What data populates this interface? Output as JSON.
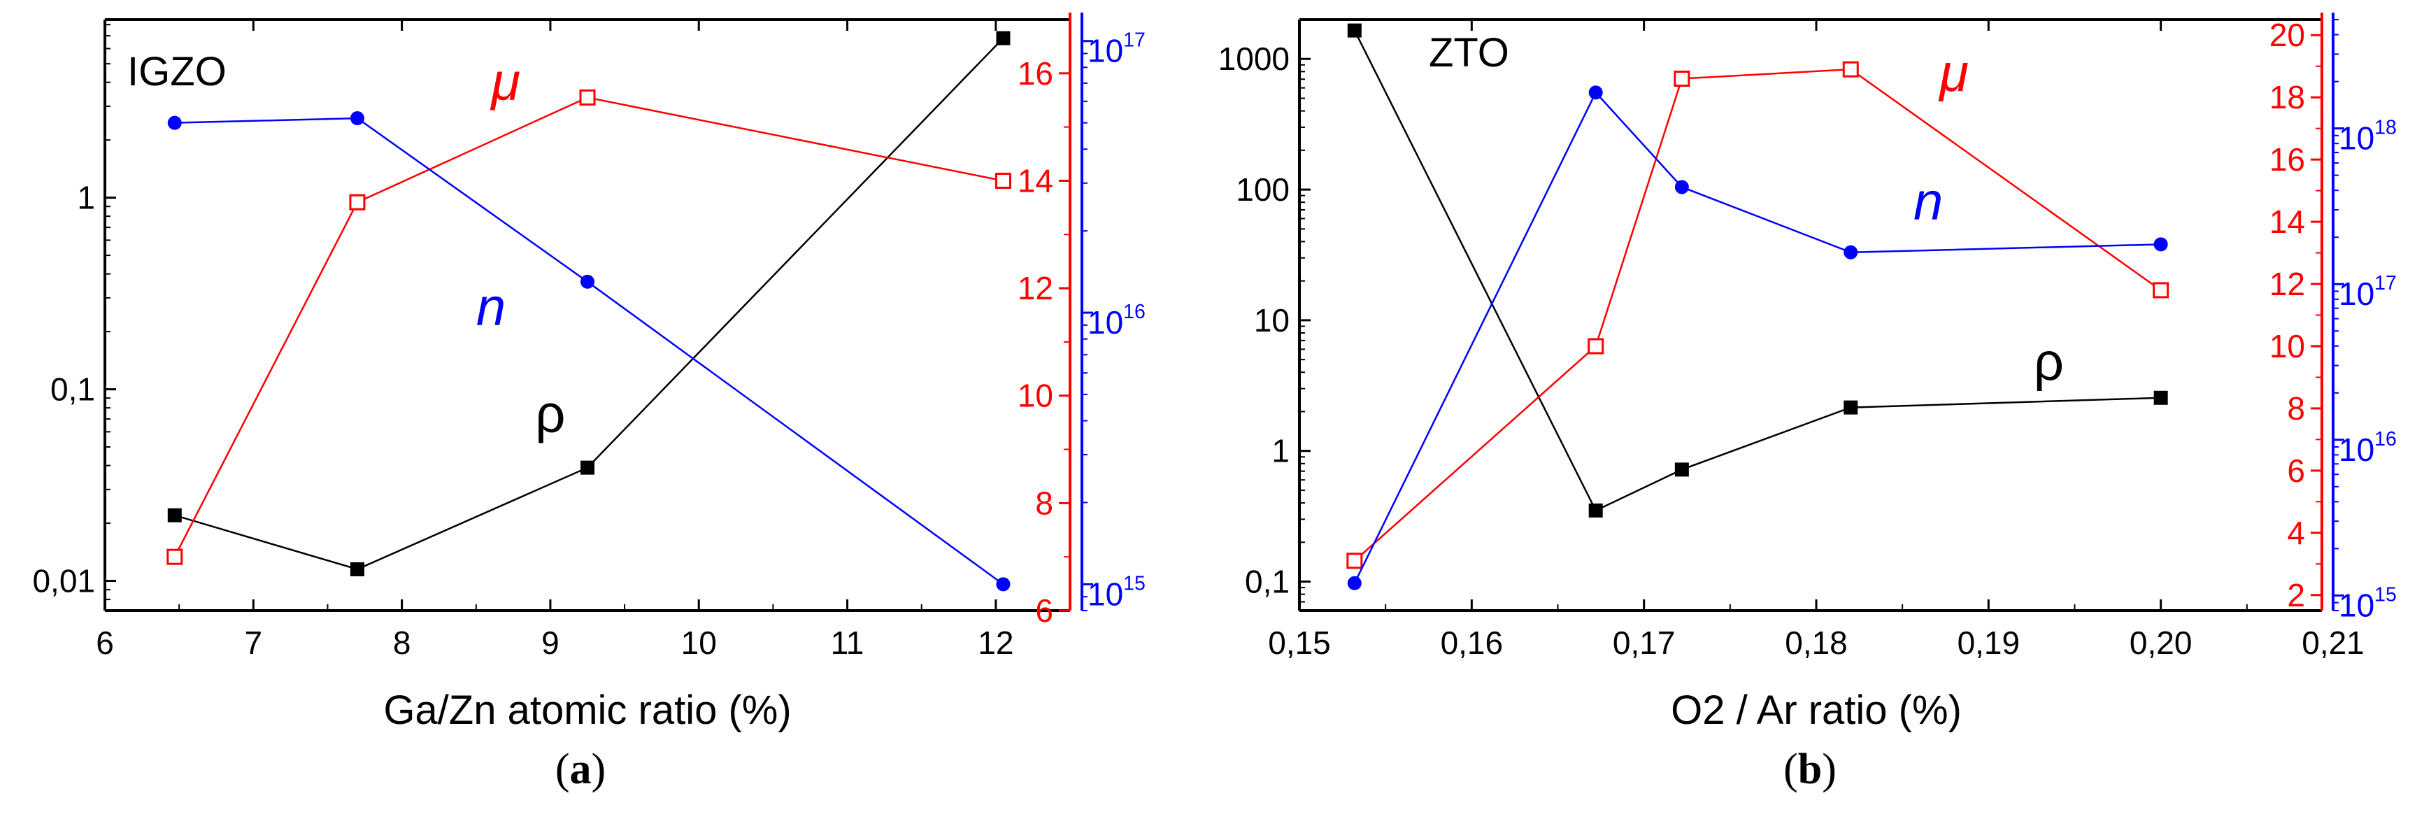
{
  "chart_data": [
    {
      "type": "line",
      "panel_label": "a",
      "title": "IGZO",
      "xlabel": "Ga/Zn atomic ratio (%)",
      "xlim": [
        6,
        12.5
      ],
      "x_ticks": [
        6,
        7,
        8,
        9,
        10,
        11,
        12
      ],
      "x_tick_labels": [
        "6",
        "7",
        "8",
        "9",
        "10",
        "11",
        "12"
      ],
      "axes": {
        "left": {
          "scale": "log",
          "range": [
            0.007,
            8.5
          ],
          "ticks": [
            0.01,
            0.1,
            1
          ],
          "tick_labels": [
            "0,01",
            "0,1",
            "1"
          ],
          "color": "#000000"
        },
        "right_mu": {
          "scale": "linear",
          "range": [
            6,
            17
          ],
          "ticks": [
            6,
            8,
            10,
            12,
            14,
            16
          ],
          "tick_labels": [
            "6",
            "8",
            "10",
            "12",
            "14",
            "16"
          ],
          "color": "#ff0000"
        },
        "right_n": {
          "scale": "log",
          "range": [
            800000000000000,
            120000000000000000
          ],
          "ticks": [
            1000000000000000,
            10000000000000000,
            100000000000000000
          ],
          "tick_labels": [
            [
              "10",
              "15"
            ],
            [
              "10",
              "16"
            ],
            [
              "10",
              "17"
            ]
          ],
          "color": "#0000ff"
        }
      },
      "series": [
        {
          "name": "ρ",
          "axis": "left",
          "color": "#000000",
          "marker": "square-filled",
          "x": [
            6.47,
            7.7,
            9.25,
            12.05
          ],
          "y": [
            0.022,
            0.0115,
            0.039,
            6.8
          ],
          "label_text": "ρ",
          "label_at": [
            9.0,
            0.06
          ]
        },
        {
          "name": "μ",
          "axis": "right_mu",
          "color": "#ff0000",
          "marker": "square-open",
          "x": [
            6.47,
            7.7,
            9.25,
            12.05
          ],
          "y": [
            7.0,
            13.6,
            15.55,
            14.0
          ],
          "label_text": "μ",
          "label_at": [
            8.7,
            15.5
          ]
        },
        {
          "name": "n",
          "axis": "right_n",
          "color": "#0000ff",
          "marker": "circle-filled",
          "x": [
            6.47,
            7.7,
            9.25,
            12.05
          ],
          "y": [
            50000000000000000,
            52000000000000000,
            13000000000000000,
            1000000000000000
          ],
          "label_text": "n",
          "label_at": [
            8.6,
            9000000000000000
          ]
        }
      ]
    },
    {
      "type": "line",
      "panel_label": "b",
      "title": "ZTO",
      "xlabel": "O2 / Ar ratio (%)",
      "xlim": [
        0.15,
        0.21
      ],
      "x_ticks": [
        0.15,
        0.16,
        0.17,
        0.18,
        0.19,
        0.2,
        0.21
      ],
      "x_tick_labels": [
        "0,15",
        "0,16",
        "0,17",
        "0,18",
        "0,19",
        "0,20",
        "0,21"
      ],
      "axes": {
        "left": {
          "scale": "log",
          "range": [
            0.06,
            2000
          ],
          "ticks": [
            0.1,
            1,
            10,
            100,
            1000
          ],
          "tick_labels": [
            "0,1",
            "1",
            "10",
            "100",
            "1000"
          ],
          "color": "#000000"
        },
        "right_mu": {
          "scale": "linear",
          "range": [
            1.5,
            20.5
          ],
          "ticks": [
            2,
            4,
            6,
            8,
            10,
            12,
            14,
            16,
            18,
            20
          ],
          "tick_labels": [
            "2",
            "4",
            "6",
            "8",
            "10",
            "12",
            "14",
            "16",
            "18",
            "20"
          ],
          "color": "#ff0000"
        },
        "right_n": {
          "scale": "log",
          "range": [
            800000000000000,
            5000000000000000000
          ],
          "ticks": [
            1000000000000000,
            10000000000000000,
            100000000000000000,
            1000000000000000000
          ],
          "tick_labels": [
            [
              "10",
              "15"
            ],
            [
              "10",
              "16"
            ],
            [
              "10",
              "17"
            ],
            [
              "10",
              "18"
            ]
          ],
          "color": "#0000ff"
        }
      },
      "series": [
        {
          "name": "ρ",
          "axis": "left",
          "color": "#000000",
          "marker": "square-filled",
          "x": [
            0.1532,
            0.1672,
            0.1722,
            0.182,
            0.2
          ],
          "y": [
            1650,
            0.35,
            0.72,
            2.15,
            2.55
          ],
          "label_text": "ρ",
          "label_at": [
            0.1935,
            3.5
          ]
        },
        {
          "name": "μ",
          "axis": "right_mu",
          "color": "#ff0000",
          "marker": "square-open",
          "x": [
            0.1532,
            0.1672,
            0.1722,
            0.182,
            0.2
          ],
          "y": [
            3.1,
            10.0,
            18.6,
            18.9,
            11.8
          ],
          "label_text": "μ",
          "label_at": [
            0.188,
            18.2
          ]
        },
        {
          "name": "n",
          "axis": "right_n",
          "color": "#0000ff",
          "marker": "circle-filled",
          "x": [
            0.1532,
            0.1672,
            0.1722,
            0.182,
            0.2
          ],
          "y": [
            1200000000000000,
            1700000000000000000,
            420000000000000000,
            160000000000000000,
            180000000000000000
          ],
          "label_text": "n",
          "label_at": [
            0.1865,
            260000000000000000
          ]
        }
      ]
    }
  ]
}
